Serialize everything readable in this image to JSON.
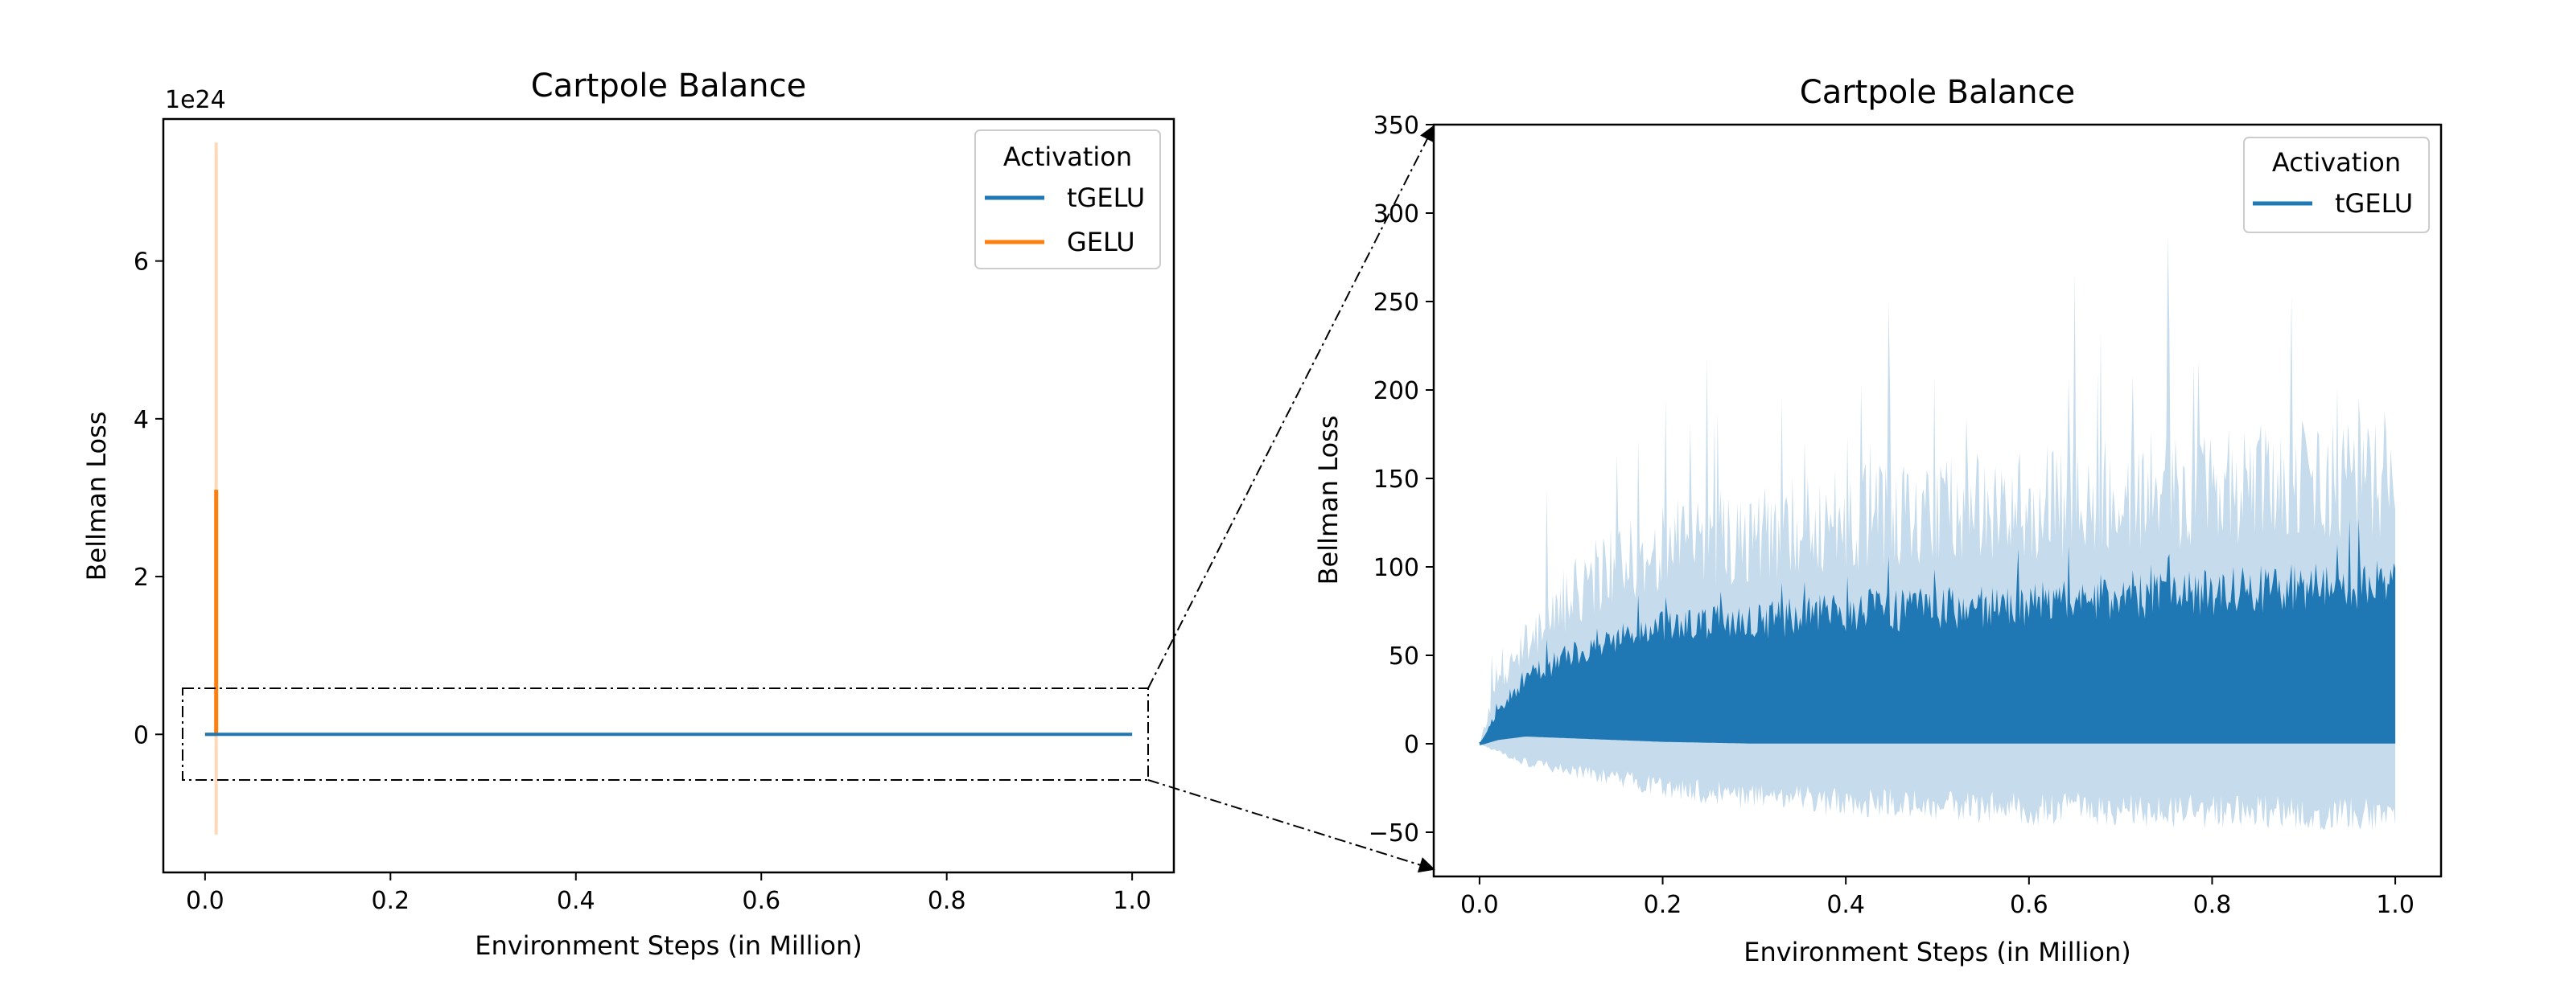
{
  "chart_data": [
    {
      "type": "line",
      "title": "Cartpole Balance",
      "xlabel": "Environment Steps (in Million)",
      "ylabel": "Bellman Loss",
      "y_offset_label": "1e24",
      "xlim": [
        -0.045,
        1.045
      ],
      "ylim": [
        -1.75,
        7.8
      ],
      "x_ticks": [
        {
          "value": 0.0,
          "label": "0.0"
        },
        {
          "value": 0.2,
          "label": "0.2"
        },
        {
          "value": 0.4,
          "label": "0.4"
        },
        {
          "value": 0.6,
          "label": "0.6"
        },
        {
          "value": 0.8,
          "label": "0.8"
        },
        {
          "value": 1.0,
          "label": "1.0"
        }
      ],
      "y_ticks": [
        {
          "value": 0,
          "label": "0"
        },
        {
          "value": 2,
          "label": "2"
        },
        {
          "value": 4,
          "label": "4"
        },
        {
          "value": 6,
          "label": "6"
        }
      ],
      "legend": {
        "title": "Activation",
        "placement": "top-right"
      },
      "series": [
        {
          "name": "tGELU",
          "color": "#1f77b4",
          "x": [
            0.0,
            1.0
          ],
          "y": [
            0,
            0
          ]
        },
        {
          "name": "GELU",
          "color": "#ff7f0e",
          "x": [
            0.0,
            0.012
          ],
          "y": [
            0,
            0
          ],
          "spike": {
            "x": 0.012,
            "mean_max": 3.1,
            "band": [
              -1.27,
              7.5
            ]
          }
        }
      ],
      "grid": false
    },
    {
      "type": "area",
      "title": "Cartpole Balance",
      "xlabel": "Environment Steps (in Million)",
      "ylabel": "Bellman Loss",
      "xlim": [
        -0.05,
        1.05
      ],
      "ylim": [
        -75,
        350
      ],
      "x_ticks": [
        {
          "value": 0.0,
          "label": "0.0"
        },
        {
          "value": 0.2,
          "label": "0.2"
        },
        {
          "value": 0.4,
          "label": "0.4"
        },
        {
          "value": 0.6,
          "label": "0.6"
        },
        {
          "value": 0.8,
          "label": "0.8"
        },
        {
          "value": 1.0,
          "label": "1.0"
        }
      ],
      "y_ticks": [
        {
          "value": -50,
          "label": "−50"
        },
        {
          "value": 0,
          "label": "0"
        },
        {
          "value": 50,
          "label": "50"
        },
        {
          "value": 100,
          "label": "100"
        },
        {
          "value": 150,
          "label": "150"
        },
        {
          "value": 200,
          "label": "200"
        },
        {
          "value": 250,
          "label": "250"
        },
        {
          "value": 300,
          "label": "300"
        },
        {
          "value": 350,
          "label": "350"
        }
      ],
      "legend": {
        "title": "Activation",
        "placement": "top-right"
      },
      "series": [
        {
          "name": "tGELU",
          "color": "#1f77b4",
          "band_color": "#c6dcec",
          "x": [
            0.0,
            0.02,
            0.05,
            0.1,
            0.15,
            0.2,
            0.3,
            0.4,
            0.5,
            0.6,
            0.7,
            0.8,
            0.9,
            1.0
          ],
          "mean_upper": [
            0,
            20,
            40,
            55,
            65,
            70,
            75,
            80,
            82,
            85,
            88,
            92,
            95,
            98
          ],
          "mean_lower": [
            0,
            3,
            5,
            4,
            3,
            2,
            1,
            1,
            1,
            1,
            1,
            1,
            1,
            1
          ],
          "band_upper": [
            0,
            40,
            70,
            100,
            120,
            130,
            140,
            150,
            155,
            160,
            165,
            170,
            175,
            180
          ],
          "band_lower": [
            0,
            -5,
            -12,
            -18,
            -22,
            -28,
            -35,
            -38,
            -40,
            -42,
            -43,
            -44,
            -45,
            -46
          ]
        }
      ],
      "grid": false
    }
  ]
}
